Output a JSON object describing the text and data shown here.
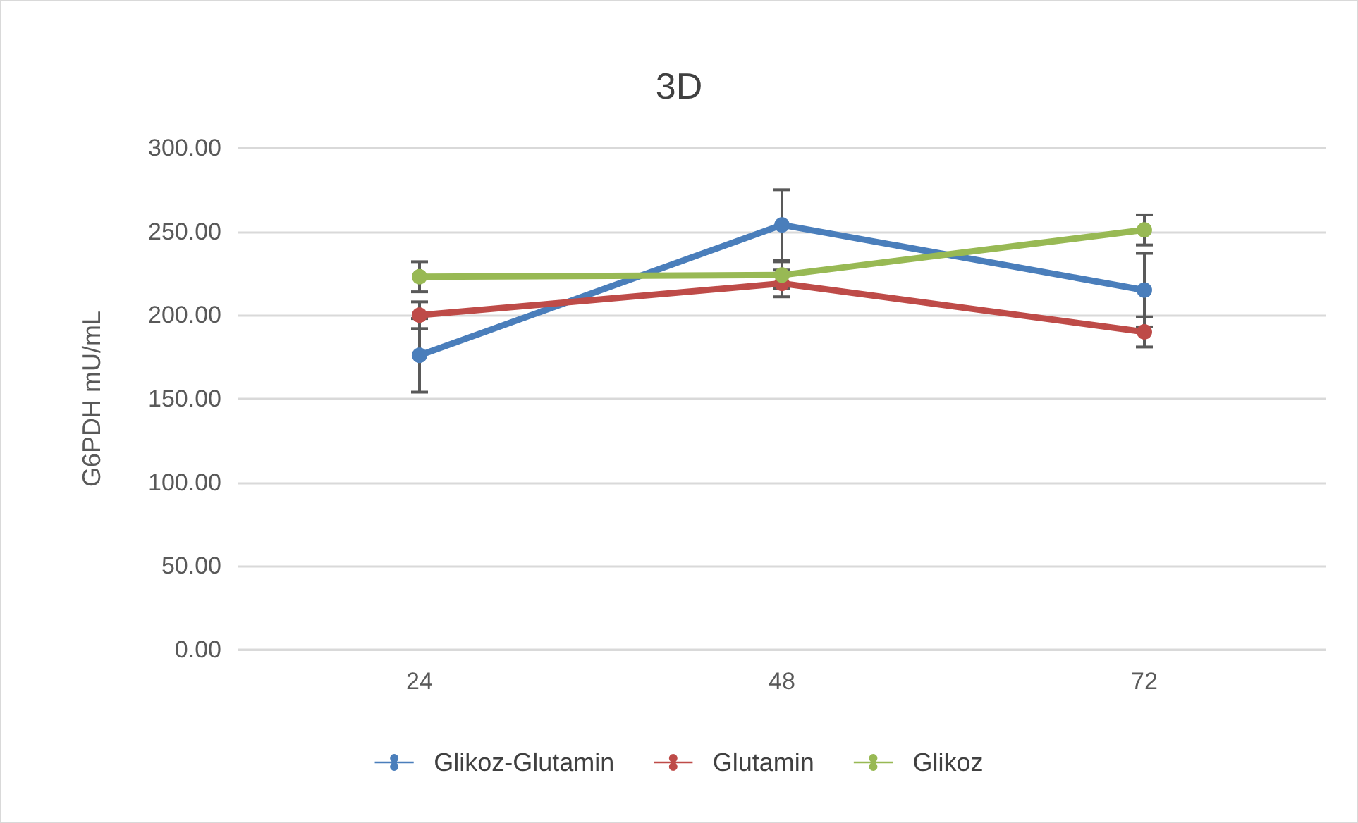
{
  "chart_data": {
    "type": "line",
    "title": "3D",
    "ylabel": "G6PDH mU/mL",
    "categories": [
      "24",
      "48",
      "72"
    ],
    "series": [
      {
        "name": "Glikoz-Glutamin",
        "color": "#4a7ebb",
        "values": [
          176,
          254,
          215
        ],
        "errors": [
          22,
          21,
          22
        ]
      },
      {
        "name": "Glutamin",
        "color": "#be4b48",
        "values": [
          200,
          219,
          190
        ],
        "errors": [
          8,
          8,
          9
        ]
      },
      {
        "name": "Glikoz",
        "color": "#98b954",
        "values": [
          223,
          224,
          251
        ],
        "errors": [
          9,
          8,
          9
        ]
      }
    ],
    "ylim": [
      0,
      300
    ],
    "yticks": [
      {
        "value": 0,
        "label": "0.00"
      },
      {
        "value": 50,
        "label": "50.00"
      },
      {
        "value": 100,
        "label": "100.00"
      },
      {
        "value": 150,
        "label": "150.00"
      },
      {
        "value": 200,
        "label": "200.00"
      },
      {
        "value": 250,
        "label": "250.00"
      },
      {
        "value": 300,
        "label": "300.00"
      }
    ],
    "grid": "y",
    "legend": "bottom",
    "marker": "circle",
    "line_style": "solid"
  }
}
